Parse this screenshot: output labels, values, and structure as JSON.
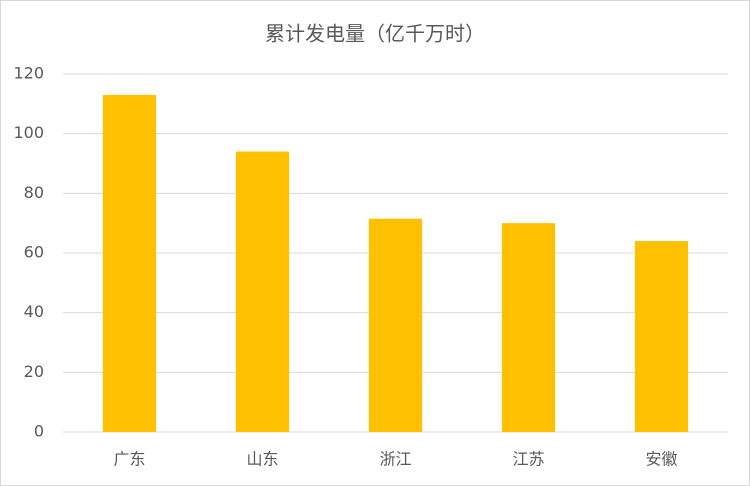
{
  "chart_data": {
    "type": "bar",
    "title": "累计发电量（亿千万时）",
    "categories": [
      "广东",
      "山东",
      "浙江",
      "江苏",
      "安徽"
    ],
    "values": [
      113,
      94,
      71.5,
      70,
      64
    ],
    "color": "#FFC000",
    "ylim": [
      0,
      120
    ],
    "yticks": [
      0,
      20,
      40,
      60,
      80,
      100,
      120
    ],
    "grid": true
  }
}
